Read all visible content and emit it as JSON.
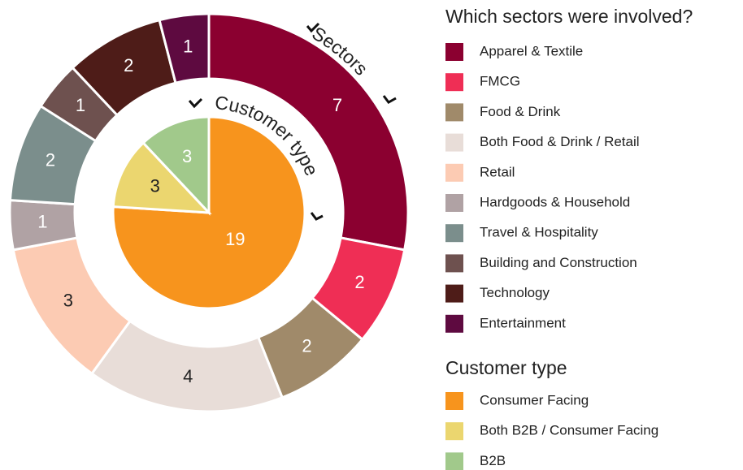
{
  "chart_data": [
    {
      "type": "donut",
      "title": "Which sectors were involved?",
      "ring_label": "Sectors",
      "categories": [
        "Apparel & Textile",
        "FMCG",
        "Food & Drink",
        "Both Food & Drink / Retail",
        "Retail",
        "Hardgoods & Household",
        "Travel & Hospitality",
        "Building and Construction",
        "Technology",
        "Entertainment"
      ],
      "values": [
        7,
        2,
        2,
        4,
        3,
        1,
        2,
        1,
        2,
        1
      ],
      "colors": [
        "#8b0030",
        "#ef2e55",
        "#a08a6a",
        "#e8ddd8",
        "#fccbb3",
        "#b0a2a4",
        "#7b8e8c",
        "#6e514f",
        "#4e1c18",
        "#5e0a40"
      ]
    },
    {
      "type": "pie",
      "title": "Customer type",
      "categories": [
        "Consumer Facing",
        "Both B2B / Consumer Facing",
        "B2B"
      ],
      "values": [
        19,
        3,
        3
      ],
      "colors": [
        "#f7941d",
        "#ebd66f",
        "#a1c98b"
      ]
    }
  ]
}
